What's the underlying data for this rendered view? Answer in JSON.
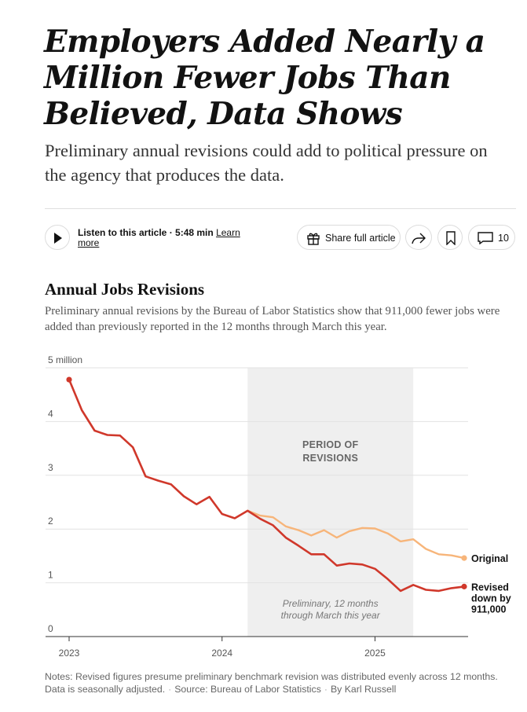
{
  "article": {
    "headline": "Employers Added Nearly a Million Fewer Jobs Than Believed, Data Shows",
    "dek": "Preliminary annual revisions could add to political pressure on the agency that produces the data."
  },
  "toolbar": {
    "listen_label": "Listen to this article · 5:48 min",
    "learn_more_label": "Learn more",
    "share_label": "Share full article",
    "comments_count": "10",
    "icons": [
      "play-icon",
      "gift-icon",
      "forward-icon",
      "bookmark-icon",
      "comment-icon"
    ]
  },
  "chart_header": {
    "title": "Annual Jobs Revisions",
    "subtitle": "Preliminary annual revisions by the Bureau of Labor Statistics show that 911,000 fewer jobs were added than previously reported in the 12 months through March this year."
  },
  "chart_data": {
    "type": "line",
    "title": "Annual Jobs Revisions",
    "ylabel": "",
    "xlabel": "",
    "ylim": [
      0,
      5
    ],
    "y_ticks": [
      {
        "value": 0,
        "label": "0"
      },
      {
        "value": 1,
        "label": "1"
      },
      {
        "value": 2,
        "label": "2"
      },
      {
        "value": 3,
        "label": "3"
      },
      {
        "value": 4,
        "label": "4"
      },
      {
        "value": 5,
        "label": "5 million"
      }
    ],
    "x_ticks": [
      {
        "value": 2023.0,
        "label": "2023"
      },
      {
        "value": 2024.0,
        "label": "2024"
      },
      {
        "value": 2025.0,
        "label": "2025"
      }
    ],
    "xlim": [
      2023.0,
      2025.583
    ],
    "grid": "horizontal",
    "shaded_region": {
      "x_start": 2024.167,
      "x_end": 2025.25,
      "label_line1": "PERIOD OF",
      "label_line2": "REVISIONS",
      "note_line1": "Preliminary, 12 months",
      "note_line2": "through March this year"
    },
    "colors": {
      "revised": "#d0382b",
      "original": "#f7b57a",
      "shade": "#efefef",
      "grid": "#e2e2e2",
      "axis": "#333333"
    },
    "series": [
      {
        "key": "revised",
        "label_lines": [
          "Revised",
          "down by",
          "911,000"
        ],
        "x": [
          2023.0,
          2023.083,
          2023.167,
          2023.25,
          2023.333,
          2023.417,
          2023.5,
          2023.583,
          2023.667,
          2023.75,
          2023.833,
          2023.917,
          2024.0,
          2024.083,
          2024.167,
          2024.25,
          2024.333,
          2024.417,
          2024.5,
          2024.583,
          2024.667,
          2024.75,
          2024.833,
          2024.917,
          2025.0,
          2025.083,
          2025.167,
          2025.25,
          2025.333,
          2025.417,
          2025.5,
          2025.583
        ],
        "values": [
          4.78,
          4.21,
          3.83,
          3.75,
          3.74,
          3.52,
          2.98,
          2.9,
          2.83,
          2.61,
          2.46,
          2.6,
          2.28,
          2.2,
          2.34,
          2.19,
          2.07,
          1.84,
          1.69,
          1.53,
          1.53,
          1.32,
          1.36,
          1.34,
          1.26,
          1.07,
          0.85,
          0.96,
          0.87,
          0.85,
          0.9,
          0.93
        ]
      },
      {
        "key": "original",
        "label_lines": [
          "Original"
        ],
        "x": [
          2024.167,
          2024.25,
          2024.333,
          2024.417,
          2024.5,
          2024.583,
          2024.667,
          2024.75,
          2024.833,
          2024.917,
          2025.0,
          2025.083,
          2025.167,
          2025.25,
          2025.333,
          2025.417,
          2025.5,
          2025.583
        ],
        "values": [
          2.34,
          2.25,
          2.22,
          2.05,
          1.98,
          1.88,
          1.98,
          1.84,
          1.96,
          2.02,
          2.01,
          1.92,
          1.77,
          1.81,
          1.63,
          1.53,
          1.51,
          1.46
        ]
      }
    ]
  },
  "notes": {
    "text": "Notes: Revised figures presume preliminary benchmark revision was distributed evenly across 12 months. Data is seasonally adjusted.",
    "source": "Source: Bureau of Labor Statistics",
    "credit": "By Karl Russell"
  }
}
